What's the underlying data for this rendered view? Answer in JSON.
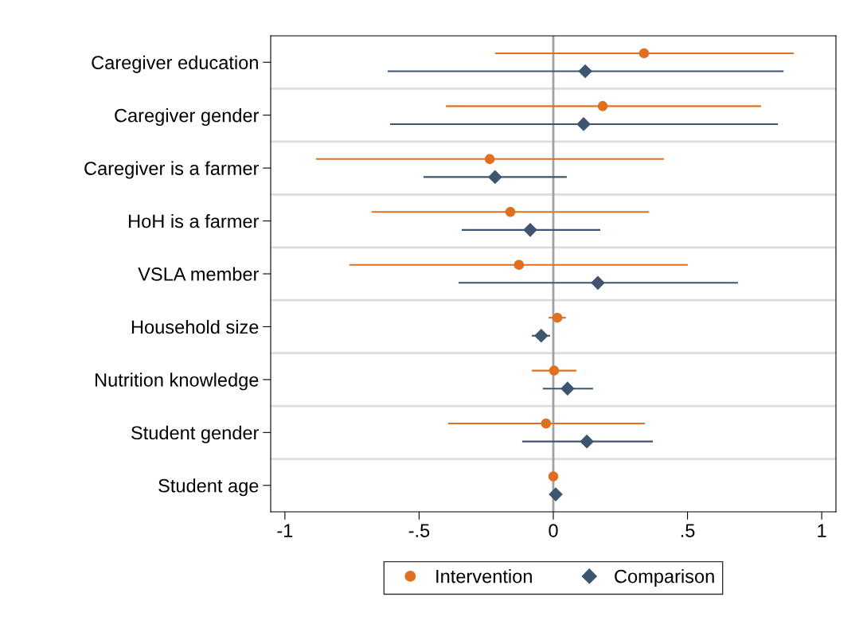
{
  "chart_data": {
    "type": "scatter",
    "orientation": "horizontal",
    "categories": [
      "Caregiver education",
      "Caregiver gender",
      "Caregiver is a farmer",
      "HoH is a farmer",
      "VSLA member",
      "Household size",
      "Nutrition knowledge",
      "Student gender",
      "Student age"
    ],
    "series": [
      {
        "name": "Intervention",
        "color": "#e07020",
        "marker": "circle",
        "values": [
          0.338,
          0.184,
          -0.237,
          -0.16,
          -0.128,
          0.015,
          0.003,
          -0.027,
          0.0
        ],
        "errors": [
          [
            -0.217,
            0.896
          ],
          [
            -0.4,
            0.774
          ],
          [
            -0.884,
            0.412
          ],
          [
            -0.677,
            0.356
          ],
          [
            -0.76,
            0.501
          ],
          [
            -0.018,
            0.047
          ],
          [
            -0.08,
            0.086
          ],
          [
            -0.392,
            0.341
          ],
          null
        ]
      },
      {
        "name": "Comparison",
        "color": "#3e5570",
        "marker": "diamond",
        "values": [
          0.119,
          0.113,
          -0.217,
          -0.086,
          0.166,
          -0.045,
          0.053,
          0.125,
          0.009
        ],
        "errors": [
          [
            -0.617,
            0.858
          ],
          [
            -0.608,
            0.837
          ],
          [
            -0.484,
            0.05
          ],
          [
            -0.341,
            0.175
          ],
          [
            -0.353,
            0.688
          ],
          [
            -0.08,
            -0.012
          ],
          [
            -0.039,
            0.148
          ],
          [
            -0.116,
            0.371
          ],
          null
        ]
      }
    ],
    "xlim": [
      -1.053,
      1.053
    ],
    "xticks": [
      {
        "value": -1,
        "label": "-1"
      },
      {
        "value": -0.5,
        "label": "-.5"
      },
      0,
      {
        "value": 0.5,
        "label": ".5"
      },
      1
    ],
    "ref_lines": [
      {
        "axis": "x",
        "value": 0,
        "color": "#a0a0a0"
      }
    ],
    "grid": "y",
    "legend": "bottom"
  }
}
